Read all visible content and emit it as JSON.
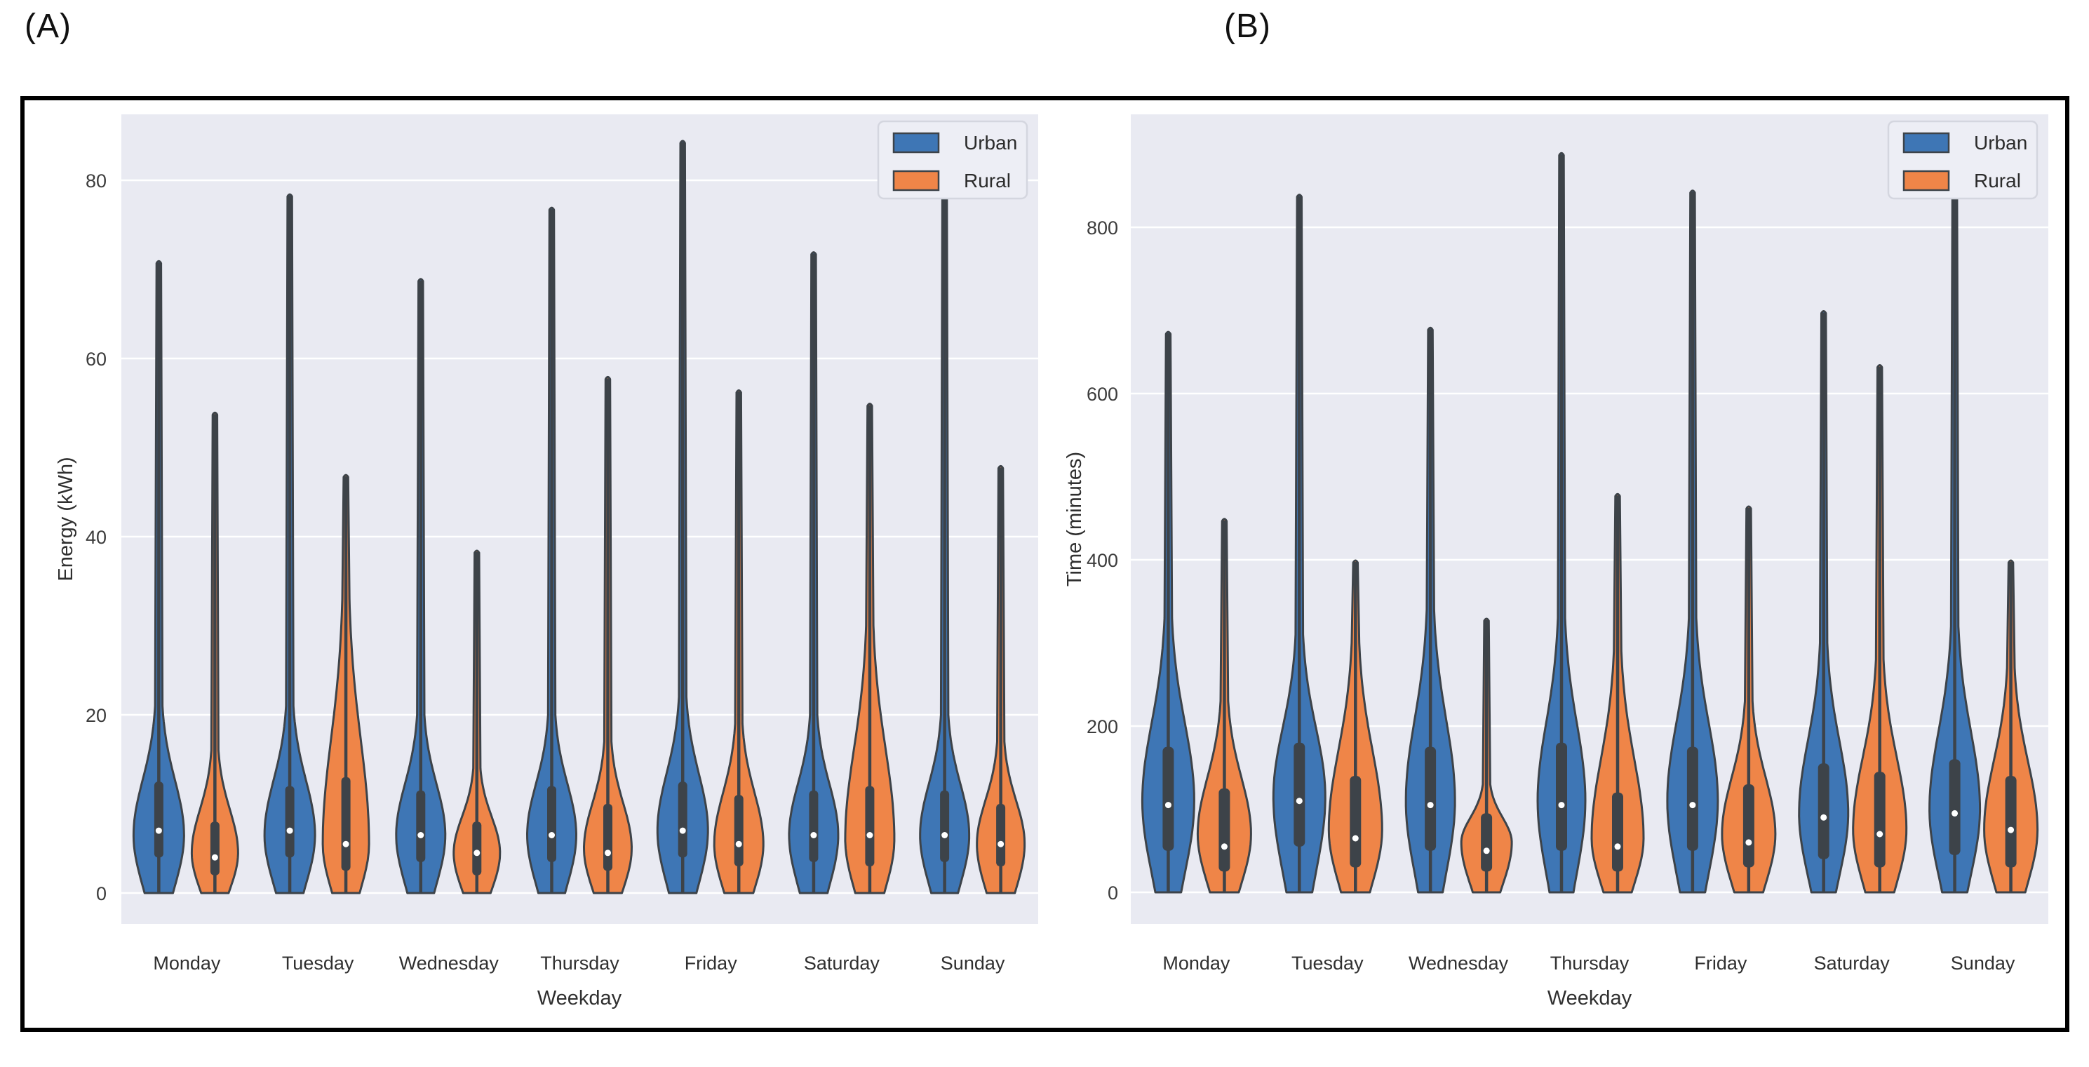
{
  "labels": {
    "panelA": "(A)",
    "panelB": "(B)"
  },
  "legend": {
    "entries": [
      {
        "label": "Urban",
        "color": "#3e76b5"
      },
      {
        "label": "Rural",
        "color": "#ef8548"
      }
    ]
  },
  "style": {
    "plot_bg": "#e9eaf2",
    "grid_color": "#ffffff",
    "edge_color": "#3d4349",
    "urban_fill": "#3e76b5",
    "rural_fill": "#ef8548",
    "median_dot": "#ffffff",
    "tick_text": "#3c3c3c",
    "figure_border": "#000000",
    "legend_bg": "#edeef5",
    "legend_border": "#d4d6df"
  },
  "chart_data": [
    {
      "type": "violin",
      "panel": "A",
      "panel_label": "(A)",
      "xlabel": "Weekday",
      "ylabel": "Energy (kWh)",
      "categories": [
        "Monday",
        "Tuesday",
        "Wednesday",
        "Thursday",
        "Friday",
        "Saturday",
        "Sunday"
      ],
      "yticks": [
        0,
        20,
        40,
        60,
        80
      ],
      "ytick_labels": [
        "0",
        "20",
        "40",
        "60",
        "80"
      ],
      "ylim": [
        -3.5,
        87.5
      ],
      "grid": true,
      "legend_position": "upper right",
      "series": [
        {
          "name": "Urban",
          "color": "#3e76b5",
          "stats": [
            {
              "day": "Monday",
              "min": 0,
              "max": 71,
              "q1": 4,
              "median": 7,
              "q3": 12.5,
              "peak": 6.5,
              "body_top": 21,
              "shape": {
                "halfwidth": 36,
                "bottom_frac": 0.52
              }
            },
            {
              "day": "Tuesday",
              "min": 0,
              "max": 78.5,
              "q1": 4,
              "median": 7,
              "q3": 12,
              "peak": 6.5,
              "body_top": 21,
              "shape": {
                "halfwidth": 36,
                "bottom_frac": 0.5
              }
            },
            {
              "day": "Wednesday",
              "min": 0,
              "max": 69,
              "q1": 3.5,
              "median": 6.5,
              "q3": 11.5,
              "peak": 6.5,
              "body_top": 20,
              "shape": {
                "halfwidth": 35,
                "bottom_frac": 0.5
              }
            },
            {
              "day": "Thursday",
              "min": 0,
              "max": 77,
              "q1": 3.5,
              "median": 6.5,
              "q3": 12,
              "peak": 6.5,
              "body_top": 20,
              "shape": {
                "halfwidth": 35,
                "bottom_frac": 0.5
              }
            },
            {
              "day": "Friday",
              "min": 0,
              "max": 84.5,
              "q1": 4,
              "median": 7,
              "q3": 12.5,
              "peak": 7,
              "body_top": 22,
              "shape": {
                "halfwidth": 36,
                "bottom_frac": 0.5
              }
            },
            {
              "day": "Saturday",
              "min": 0,
              "max": 72,
              "q1": 3.5,
              "median": 6.5,
              "q3": 11.5,
              "peak": 6.5,
              "body_top": 20,
              "shape": {
                "halfwidth": 35,
                "bottom_frac": 0.52
              }
            },
            {
              "day": "Sunday",
              "min": 0,
              "max": 79,
              "q1": 3.5,
              "median": 6.5,
              "q3": 11.5,
              "peak": 6.5,
              "body_top": 20,
              "shape": {
                "halfwidth": 35,
                "bottom_frac": 0.5
              }
            }
          ]
        },
        {
          "name": "Rural",
          "color": "#ef8548",
          "stats": [
            {
              "day": "Monday",
              "min": 0,
              "max": 54,
              "q1": 2,
              "median": 4,
              "q3": 8,
              "peak": 4.5,
              "body_top": 16,
              "shape": {
                "halfwidth": 33,
                "bottom_frac": 0.55
              }
            },
            {
              "day": "Tuesday",
              "min": 0,
              "max": 47,
              "q1": 2.5,
              "median": 5.5,
              "q3": 13,
              "peak": 5.5,
              "body_top": 33,
              "shape": {
                "halfwidth": 33,
                "bottom_frac": 0.55
              }
            },
            {
              "day": "Wednesday",
              "min": 0,
              "max": 38.5,
              "q1": 2,
              "median": 4.5,
              "q3": 8,
              "peak": 4.5,
              "body_top": 14,
              "shape": {
                "halfwidth": 33,
                "bottom_frac": 0.55
              }
            },
            {
              "day": "Thursday",
              "min": 0,
              "max": 58,
              "q1": 2.5,
              "median": 4.5,
              "q3": 10,
              "peak": 5,
              "body_top": 17,
              "shape": {
                "halfwidth": 34,
                "bottom_frac": 0.55
              }
            },
            {
              "day": "Friday",
              "min": 0,
              "max": 56.5,
              "q1": 3,
              "median": 5.5,
              "q3": 11,
              "peak": 5.5,
              "body_top": 19,
              "shape": {
                "halfwidth": 35,
                "bottom_frac": 0.55
              }
            },
            {
              "day": "Saturday",
              "min": 0,
              "max": 55,
              "q1": 3,
              "median": 6.5,
              "q3": 12,
              "peak": 6,
              "body_top": 30,
              "shape": {
                "halfwidth": 35,
                "bottom_frac": 0.55
              }
            },
            {
              "day": "Sunday",
              "min": 0,
              "max": 48,
              "q1": 3,
              "median": 5.5,
              "q3": 10,
              "peak": 5.5,
              "body_top": 17,
              "shape": {
                "halfwidth": 34,
                "bottom_frac": 0.55
              }
            }
          ]
        }
      ]
    },
    {
      "type": "violin",
      "panel": "B",
      "panel_label": "(B)",
      "xlabel": "Weekday",
      "ylabel": "Time (minutes)",
      "categories": [
        "Monday",
        "Tuesday",
        "Wednesday",
        "Thursday",
        "Friday",
        "Saturday",
        "Sunday"
      ],
      "yticks": [
        0,
        200,
        400,
        600,
        800
      ],
      "ytick_labels": [
        "0",
        "200",
        "400",
        "600",
        "800"
      ],
      "ylim": [
        -38,
        936
      ],
      "grid": true,
      "legend_position": "upper right",
      "series": [
        {
          "name": "Urban",
          "color": "#3e76b5",
          "stats": [
            {
              "day": "Monday",
              "min": 0,
              "max": 675,
              "q1": 50,
              "median": 105,
              "q3": 175,
              "peak": 110,
              "body_top": 330,
              "shape": {
                "halfwidth": 37,
                "bottom_frac": 0.45
              }
            },
            {
              "day": "Tuesday",
              "min": 0,
              "max": 840,
              "q1": 55,
              "median": 110,
              "q3": 180,
              "peak": 115,
              "body_top": 310,
              "shape": {
                "halfwidth": 37,
                "bottom_frac": 0.45
              }
            },
            {
              "day": "Wednesday",
              "min": 0,
              "max": 680,
              "q1": 50,
              "median": 105,
              "q3": 175,
              "peak": 110,
              "body_top": 340,
              "shape": {
                "halfwidth": 35,
                "bottom_frac": 0.45
              }
            },
            {
              "day": "Thursday",
              "min": 0,
              "max": 890,
              "q1": 50,
              "median": 105,
              "q3": 180,
              "peak": 110,
              "body_top": 330,
              "shape": {
                "halfwidth": 34,
                "bottom_frac": 0.45
              }
            },
            {
              "day": "Friday",
              "min": 0,
              "max": 845,
              "q1": 50,
              "median": 105,
              "q3": 175,
              "peak": 110,
              "body_top": 330,
              "shape": {
                "halfwidth": 36,
                "bottom_frac": 0.45
              }
            },
            {
              "day": "Saturday",
              "min": 0,
              "max": 700,
              "q1": 40,
              "median": 90,
              "q3": 155,
              "peak": 95,
              "body_top": 300,
              "shape": {
                "halfwidth": 35,
                "bottom_frac": 0.45
              }
            },
            {
              "day": "Sunday",
              "min": 0,
              "max": 875,
              "q1": 45,
              "median": 95,
              "q3": 160,
              "peak": 100,
              "body_top": 320,
              "shape": {
                "halfwidth": 36,
                "bottom_frac": 0.45
              }
            }
          ]
        },
        {
          "name": "Rural",
          "color": "#ef8548",
          "stats": [
            {
              "day": "Monday",
              "min": 0,
              "max": 450,
              "q1": 25,
              "median": 55,
              "q3": 125,
              "peak": 70,
              "body_top": 230,
              "shape": {
                "halfwidth": 38,
                "bottom_frac": 0.5
              }
            },
            {
              "day": "Tuesday",
              "min": 0,
              "max": 400,
              "q1": 30,
              "median": 65,
              "q3": 140,
              "peak": 75,
              "body_top": 300,
              "shape": {
                "halfwidth": 38,
                "bottom_frac": 0.5
              }
            },
            {
              "day": "Wednesday",
              "min": 0,
              "max": 330,
              "q1": 25,
              "median": 50,
              "q3": 95,
              "peak": 60,
              "body_top": 130,
              "shape": {
                "halfwidth": 36,
                "bottom_frac": 0.5
              }
            },
            {
              "day": "Thursday",
              "min": 0,
              "max": 480,
              "q1": 25,
              "median": 55,
              "q3": 120,
              "peak": 65,
              "body_top": 290,
              "shape": {
                "halfwidth": 37,
                "bottom_frac": 0.5
              }
            },
            {
              "day": "Friday",
              "min": 0,
              "max": 465,
              "q1": 30,
              "median": 60,
              "q3": 130,
              "peak": 70,
              "body_top": 230,
              "shape": {
                "halfwidth": 38,
                "bottom_frac": 0.5
              }
            },
            {
              "day": "Saturday",
              "min": 0,
              "max": 635,
              "q1": 30,
              "median": 70,
              "q3": 145,
              "peak": 75,
              "body_top": 280,
              "shape": {
                "halfwidth": 38,
                "bottom_frac": 0.5
              }
            },
            {
              "day": "Sunday",
              "min": 0,
              "max": 400,
              "q1": 30,
              "median": 75,
              "q3": 140,
              "peak": 75,
              "body_top": 270,
              "shape": {
                "halfwidth": 38,
                "bottom_frac": 0.5
              }
            }
          ]
        }
      ]
    }
  ]
}
